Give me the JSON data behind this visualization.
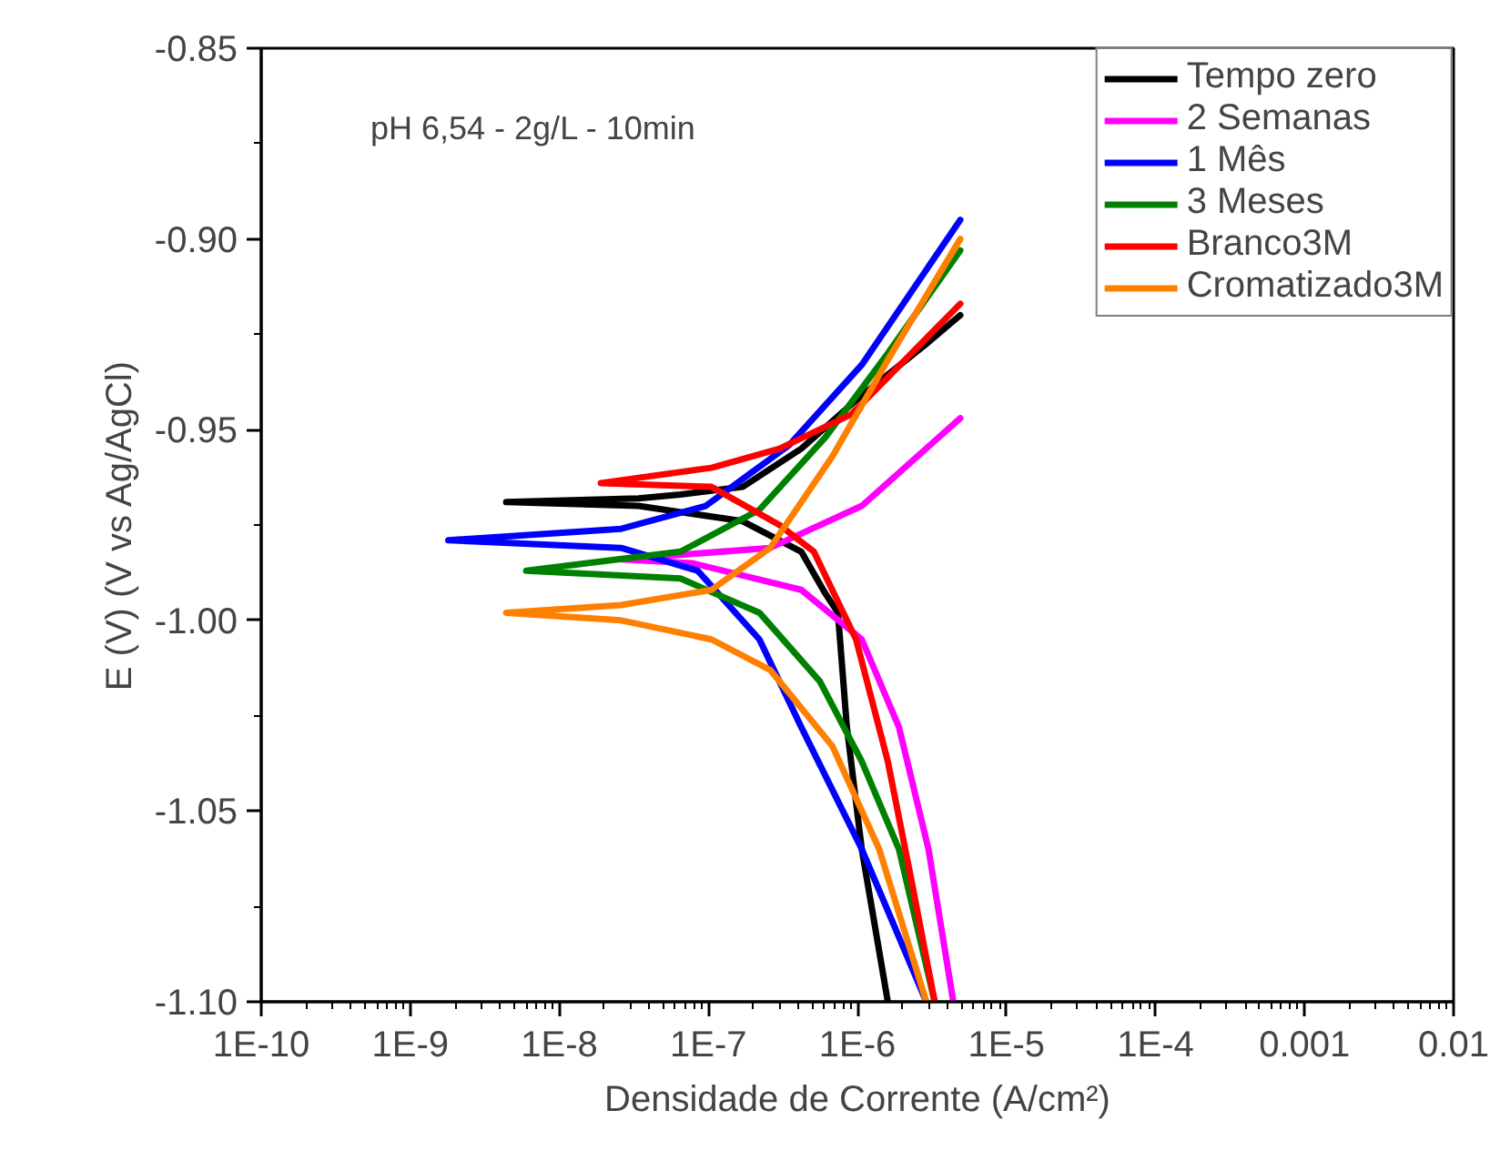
{
  "chart_data": {
    "type": "line",
    "xlabel": "Densidade de Corrente (A/cm²)",
    "ylabel": "E (V) (V vs Ag/AgCl)",
    "annotations": [
      "pH 6,54 - 2g/L - 10min"
    ],
    "log": "x",
    "grid": false,
    "legend": "top right",
    "marker": "none",
    "line_style": "solid",
    "xlim": [
      1e-10,
      0.01
    ],
    "ylim": [
      -1.1,
      -0.85
    ],
    "xticks": [
      {
        "value": 1e-10,
        "label": "1E-10"
      },
      {
        "value": 1e-09,
        "label": "1E-9"
      },
      {
        "value": 1e-08,
        "label": "1E-8"
      },
      {
        "value": 1e-07,
        "label": "1E-7"
      },
      {
        "value": 1e-06,
        "label": "1E-6"
      },
      {
        "value": 1e-05,
        "label": "1E-5"
      },
      {
        "value": 0.0001,
        "label": "1E-4"
      },
      {
        "value": 0.001,
        "label": "0.001"
      },
      {
        "value": 0.01,
        "label": "0.01"
      }
    ],
    "yticks": [
      {
        "value": -1.1,
        "label": "-1.10"
      },
      {
        "value": -1.05,
        "label": "-1.05"
      },
      {
        "value": -1.0,
        "label": "-1.00"
      },
      {
        "value": -0.95,
        "label": "-0.95"
      },
      {
        "value": -0.9,
        "label": "-0.90"
      },
      {
        "value": -0.85,
        "label": "-0.85"
      }
    ],
    "series": [
      {
        "name": "Tempo zero",
        "color": "#000000",
        "x": [
          1.6e-06,
          1.07e-06,
          8.5e-07,
          7.4e-07,
          6.1e-07,
          4.2e-07,
          1.7e-07,
          3.4e-08,
          4.4e-09,
          3.4e-08,
          6.5e-08,
          1.7e-07,
          4.2e-07,
          1.07e-06,
          2.8e-06,
          4.9e-06
        ],
        "values": [
          -1.1,
          -1.06,
          -1.028,
          -0.998,
          -0.993,
          -0.982,
          -0.974,
          -0.97,
          -0.969,
          -0.968,
          -0.967,
          -0.965,
          -0.955,
          -0.941,
          -0.928,
          -0.92
        ]
      },
      {
        "name": "2 Semanas",
        "color": "#ff00ff",
        "x": [
          4.4e-06,
          3e-06,
          1.9e-06,
          1.07e-06,
          4.2e-07,
          7.8e-08,
          2.6e-08,
          2.6e-07,
          1.07e-06,
          4.9e-06
        ],
        "values": [
          -1.1,
          -1.06,
          -1.028,
          -1.005,
          -0.992,
          -0.985,
          -0.984,
          -0.981,
          -0.97,
          -0.947
        ]
      },
      {
        "name": "1 Mês",
        "color": "#0000ff",
        "x": [
          2.9e-06,
          1.07e-06,
          4.2e-07,
          2.2e-07,
          8.5e-08,
          2.6e-08,
          1.8e-09,
          2.6e-08,
          9.6e-08,
          3.5e-07,
          1.07e-06,
          4.9e-06
        ],
        "values": [
          -1.1,
          -1.06,
          -1.028,
          -1.005,
          -0.987,
          -0.981,
          -0.979,
          -0.976,
          -0.97,
          -0.954,
          -0.933,
          -0.895
        ]
      },
      {
        "name": "3 Meses",
        "color": "#008000",
        "x": [
          3.3e-06,
          1.9e-06,
          1.07e-06,
          5.6e-07,
          2.2e-07,
          6.5e-08,
          6e-09,
          6.5e-08,
          2.2e-07,
          6.1e-07,
          1.6e-06,
          4.9e-06
        ],
        "values": [
          -1.1,
          -1.06,
          -1.037,
          -1.016,
          -0.998,
          -0.989,
          -0.987,
          -0.982,
          -0.971,
          -0.952,
          -0.93,
          -0.903
        ]
      },
      {
        "name": "Branco3M",
        "color": "#ff0000",
        "x": [
          3.3e-06,
          2.3e-06,
          1.6e-06,
          9.8e-07,
          5.1e-07,
          3e-07,
          1.05e-07,
          1.9e-08,
          1.05e-07,
          3e-07,
          9.1e-07,
          4.9e-06
        ],
        "values": [
          -1.1,
          -1.068,
          -1.037,
          -1.005,
          -0.982,
          -0.975,
          -0.965,
          -0.964,
          -0.96,
          -0.955,
          -0.946,
          -0.917
        ]
      },
      {
        "name": "Cromatizado3M",
        "color": "#ff8000",
        "x": [
          2.9e-06,
          1.4e-06,
          6.8e-07,
          2.6e-07,
          1.05e-07,
          2.6e-08,
          4.4e-09,
          2.6e-08,
          1.05e-07,
          2.6e-07,
          6.8e-07,
          1.7e-06,
          4.9e-06
        ],
        "values": [
          -1.1,
          -1.06,
          -1.033,
          -1.013,
          -1.005,
          -1.0,
          -0.998,
          -0.996,
          -0.992,
          -0.981,
          -0.957,
          -0.93,
          -0.9
        ]
      }
    ]
  }
}
